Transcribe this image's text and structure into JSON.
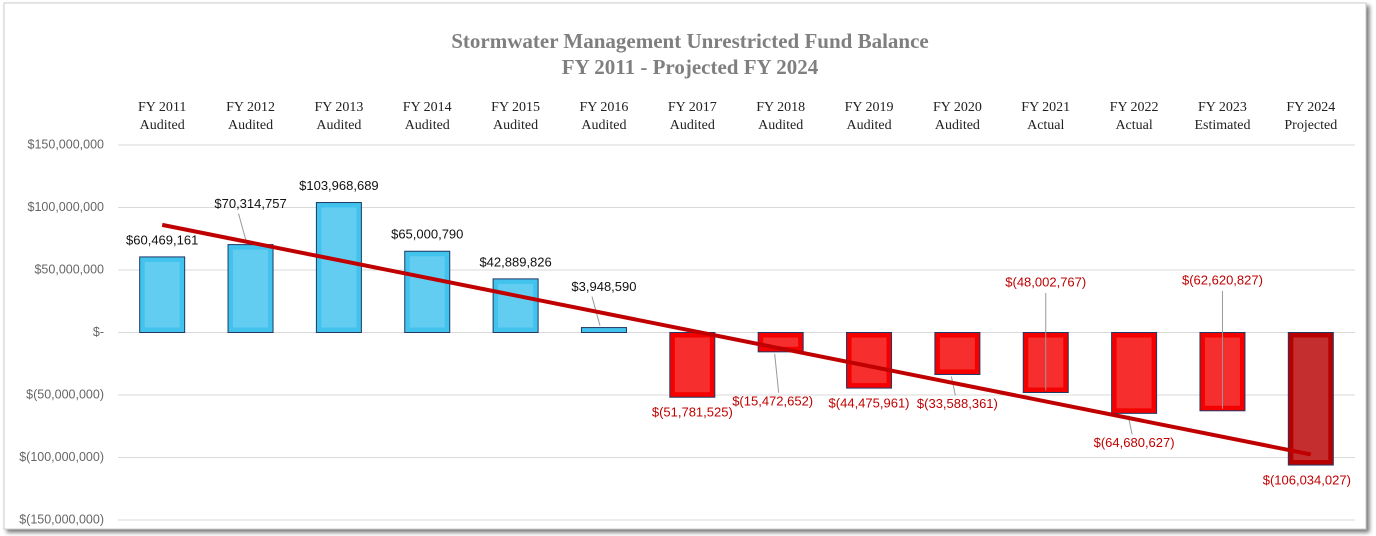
{
  "chart_data": {
    "type": "bar",
    "title": [
      "Stormwater Management Unrestricted Fund Balance",
      "FY 2011 - Projected FY 2024"
    ],
    "categories": [
      [
        "FY 2011",
        "Audited"
      ],
      [
        "FY 2012",
        "Audited"
      ],
      [
        "FY 2013",
        "Audited"
      ],
      [
        "FY 2014",
        "Audited"
      ],
      [
        "FY 2015",
        "Audited"
      ],
      [
        "FY 2016",
        "Audited"
      ],
      [
        "FY 2017",
        "Audited"
      ],
      [
        "FY 2018",
        "Audited"
      ],
      [
        "FY 2019",
        "Audited"
      ],
      [
        "FY 2020",
        "Audited"
      ],
      [
        "FY 2021",
        "Actual"
      ],
      [
        "FY 2022",
        "Actual"
      ],
      [
        "FY 2023",
        "Estimated"
      ],
      [
        "FY 2024",
        "Projected"
      ]
    ],
    "values": [
      60469161,
      70314757,
      103968689,
      65000790,
      42889826,
      3948590,
      -51781525,
      -15472652,
      -44475961,
      -33588361,
      -48002767,
      -64680627,
      -62620827,
      -106034027
    ],
    "value_labels": [
      "$60,469,161",
      "$70,314,757",
      "$103,968,689",
      "$65,000,790",
      "$42,889,826",
      "$3,948,590",
      "$(51,781,525)",
      "$(15,472,652)",
      "$(44,475,961)",
      "$(33,588,361)",
      "$(48,002,767)",
      "$(64,680,627)",
      "$(62,620,827)",
      "$(106,034,027)"
    ],
    "colors": [
      "#41c3ee",
      "#41c3ee",
      "#41c3ee",
      "#41c3ee",
      "#41c3ee",
      "#41c3ee",
      "#f50000",
      "#f50000",
      "#f50000",
      "#f50000",
      "#f50000",
      "#f50000",
      "#f50000",
      "#b80000"
    ],
    "trendline": {
      "type": "linear",
      "color": "#c00000"
    },
    "ylim": [
      -150000000,
      150000000
    ],
    "yticks": [
      {
        "value": -150000000,
        "label": "$(150,000,000)"
      },
      {
        "value": -100000000,
        "label": "$(100,000,000)"
      },
      {
        "value": -50000000,
        "label": "$(50,000,000)"
      },
      {
        "value": 0,
        "label": "$-"
      },
      {
        "value": 50000000,
        "label": "$50,000,000"
      },
      {
        "value": 100000000,
        "label": "$100,000,000"
      },
      {
        "value": 150000000,
        "label": "$150,000,000"
      }
    ],
    "grid": true
  }
}
